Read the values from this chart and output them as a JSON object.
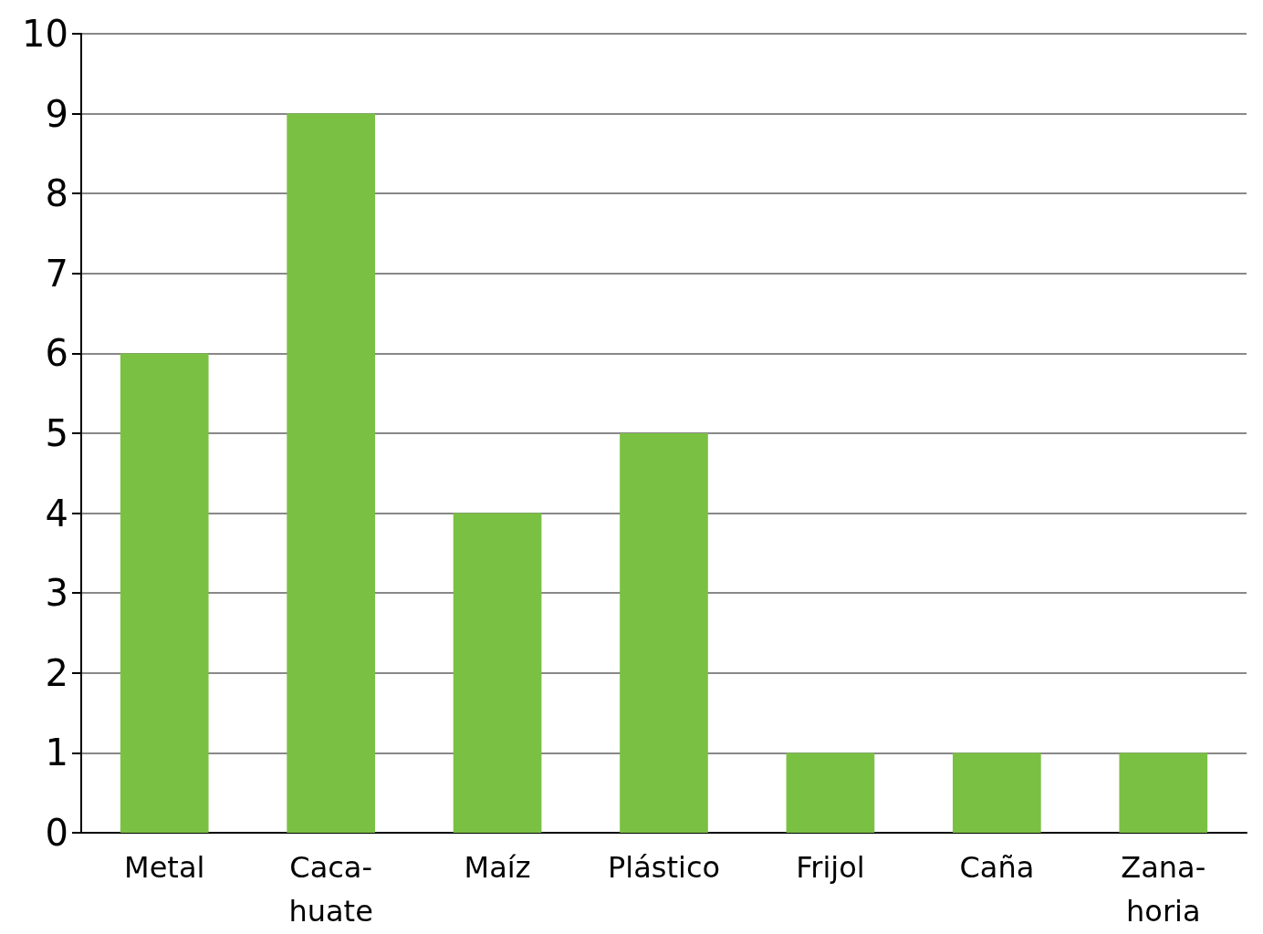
{
  "chart_data": {
    "type": "bar",
    "categories": [
      "Metal",
      "Caca-\nhuate",
      "Maíz",
      "Plástico",
      "Frijol",
      "Caña",
      "Zana-\nhoria"
    ],
    "values": [
      6,
      9,
      4,
      5,
      1,
      1,
      1
    ],
    "color": "#7ac143",
    "ylim": [
      0,
      10
    ],
    "yticks": [
      0,
      1,
      2,
      3,
      4,
      5,
      6,
      7,
      8,
      9,
      10
    ],
    "grid": "y"
  }
}
